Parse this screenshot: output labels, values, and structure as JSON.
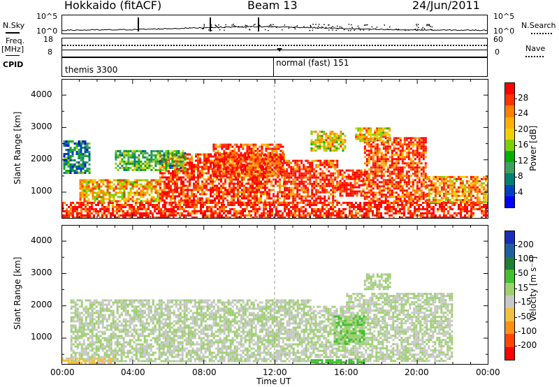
{
  "header": {
    "station": "Hokkaido (fitACF)",
    "beam": "Beam 13",
    "date": "24/Jun/2011"
  },
  "left_labels": {
    "nsky": "N.Sky",
    "freq": "Freq.",
    "mhz": "[MHz]",
    "cpid": "CPID"
  },
  "right_labels": {
    "nsearch": "N.Search",
    "nave": "Nave"
  },
  "noise_panel": {
    "left_ticks": [
      "10^5",
      "10^0"
    ],
    "right_ticks": [
      "10^5",
      "10^0"
    ]
  },
  "freq_panel": {
    "left_ticks": [
      "18",
      "8"
    ],
    "right_ticks": [
      "60",
      "0"
    ]
  },
  "cpid_panel": {
    "programs": [
      "themis 3300",
      "normal (fast) 151"
    ]
  },
  "power_colorbar": {
    "label": "Power [dB]",
    "ticks": [
      "28",
      "24",
      "20",
      "16",
      "12",
      "8",
      "4"
    ],
    "colors": [
      "#ff0000",
      "#ff3300",
      "#ff7f00",
      "#ffb000",
      "#f0d000",
      "#7fd000",
      "#00b000",
      "#3fa060",
      "#008070",
      "#0040c0",
      "#0000ff"
    ]
  },
  "velocity_colorbar": {
    "label": "Velocity [m s⁻¹]",
    "ticks": [
      "200",
      "100",
      "50",
      "15",
      "-15",
      "-50",
      "-100",
      "-200"
    ],
    "colors": [
      "#1a2ebb",
      "#2060a0",
      "#1e8030",
      "#40c030",
      "#9ed070",
      "#c8c8c8",
      "#f0c040",
      "#ff9010",
      "#ff4400",
      "#ff0000"
    ]
  },
  "x_ticks": [
    "00:00",
    "04:00",
    "08:00",
    "12:00",
    "16:00",
    "20:00",
    "00:00"
  ],
  "x_label": "Time UT",
  "y_label": "Slant Range [km]",
  "y_ticks": [
    "4000",
    "3000",
    "2000",
    "1000"
  ],
  "chart_data": [
    {
      "type": "heatmap",
      "title": "",
      "xlabel": "Time UT",
      "ylabel": "Slant Range [km]",
      "xlim": [
        0,
        24
      ],
      "ylim": [
        180,
        4500
      ],
      "colorbar": "Power [dB]",
      "cmap_range": [
        0,
        30
      ],
      "regions": [
        {
          "t0": 0.0,
          "t1": 24.0,
          "r0": 200,
          "r1": 700,
          "value": 28
        },
        {
          "t0": 1.0,
          "t1": 5.5,
          "r0": 700,
          "r1": 1400,
          "value": 20
        },
        {
          "t0": 5.5,
          "t1": 12.5,
          "r0": 700,
          "r1": 2200,
          "value": 27
        },
        {
          "t0": 8.5,
          "t1": 12.5,
          "r0": 1500,
          "r1": 2500,
          "value": 26
        },
        {
          "t0": 12.5,
          "t1": 15.5,
          "r0": 700,
          "r1": 2000,
          "value": 27
        },
        {
          "t0": 15.5,
          "t1": 17.0,
          "r0": 900,
          "r1": 1700,
          "value": 28
        },
        {
          "t0": 17.0,
          "t1": 20.5,
          "r0": 700,
          "r1": 2700,
          "value": 26
        },
        {
          "t0": 3.0,
          "t1": 7.0,
          "r0": 1700,
          "r1": 2300,
          "value": 12
        },
        {
          "t0": 0.1,
          "t1": 1.6,
          "r0": 1600,
          "r1": 2600,
          "value": 8
        },
        {
          "t0": 14.0,
          "t1": 16.0,
          "r0": 2300,
          "r1": 2900,
          "value": 18
        },
        {
          "t0": 16.5,
          "t1": 18.5,
          "r0": 2600,
          "r1": 3000,
          "value": 20
        },
        {
          "t0": 20.5,
          "t1": 24.0,
          "r0": 700,
          "r1": 1500,
          "value": 22
        }
      ]
    },
    {
      "type": "heatmap",
      "title": "",
      "xlabel": "Time UT",
      "ylabel": "Slant Range [km]",
      "xlim": [
        0,
        24
      ],
      "ylim": [
        180,
        4500
      ],
      "colorbar": "Velocity [m s⁻¹]",
      "cmap_range": [
        -200,
        200
      ],
      "regions": [
        {
          "t0": 0.5,
          "t1": 14.0,
          "r0": 300,
          "r1": 2200,
          "value": 0
        },
        {
          "t0": 14.0,
          "t1": 16.0,
          "r0": 400,
          "r1": 2000,
          "value": 0
        },
        {
          "t0": 16.0,
          "t1": 22.0,
          "r0": 300,
          "r1": 2400,
          "value": 0
        },
        {
          "t0": 15.3,
          "t1": 17.0,
          "r0": 800,
          "r1": 1700,
          "value": 40
        },
        {
          "t0": 17.0,
          "t1": 18.5,
          "r0": 2500,
          "r1": 3000,
          "value": 10
        },
        {
          "t0": 14.0,
          "t1": 17.0,
          "r0": 200,
          "r1": 350,
          "value": 60
        },
        {
          "t0": 0.0,
          "t1": 3.0,
          "r0": 200,
          "r1": 400,
          "value": -50
        }
      ]
    }
  ]
}
